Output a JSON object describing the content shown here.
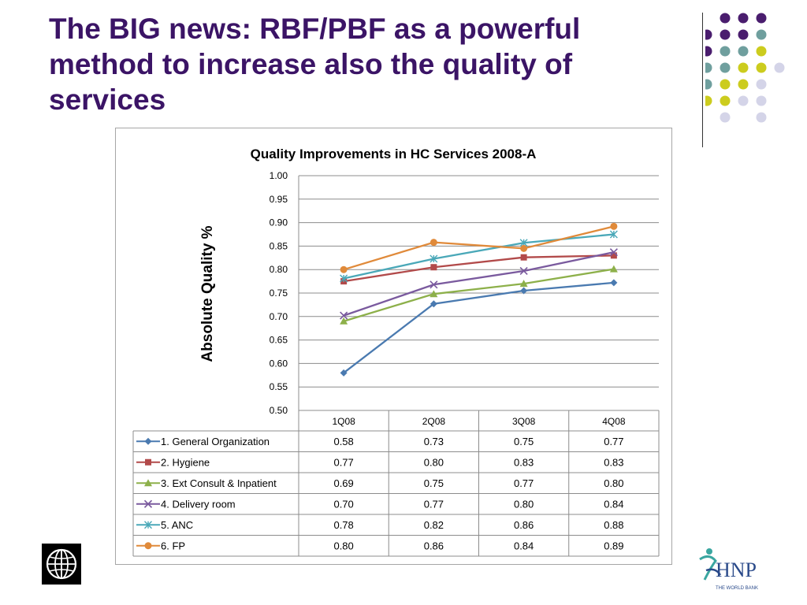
{
  "slide": {
    "title": "The BIG news: RBF/PBF as a powerful method to increase also the quality of services"
  },
  "logos": {
    "left": "world-bank-globe-logo",
    "right": "hnp-logo",
    "right_text": "HNP",
    "right_subtext": "THE WORLD BANK"
  },
  "colors": {
    "title": "#3b1466",
    "dot_purple": "#4a1d6e",
    "dot_teal": "#6f9f9e",
    "dot_yellow": "#cccc1e",
    "dot_lilac": "#d4d4e8"
  },
  "chart_data": {
    "type": "line",
    "title": "Quality Improvements in HC Services 2008-A",
    "xlabel": "",
    "ylabel": "Absolute Quality %",
    "categories": [
      "1Q08",
      "2Q08",
      "3Q08",
      "4Q08"
    ],
    "ylim": [
      0.5,
      1.0
    ],
    "yticks": [
      "0.50",
      "0.55",
      "0.60",
      "0.65",
      "0.70",
      "0.75",
      "0.80",
      "0.85",
      "0.90",
      "0.95",
      "1.00"
    ],
    "grid": true,
    "legend": "data-table-below",
    "series": [
      {
        "name": "1. General Organization",
        "values": [
          0.58,
          0.727,
          0.755,
          0.772
        ],
        "labels": [
          "0.58",
          "0.73",
          "0.75",
          "0.77"
        ],
        "color": "#4a7ab0",
        "marker": "diamond"
      },
      {
        "name": "2. Hygiene",
        "values": [
          0.775,
          0.805,
          0.826,
          0.83
        ],
        "labels": [
          "0.77",
          "0.80",
          "0.83",
          "0.83"
        ],
        "color": "#b24a4a",
        "marker": "square"
      },
      {
        "name": "3. Ext Consult & Inpatient",
        "values": [
          0.69,
          0.748,
          0.77,
          0.801
        ],
        "labels": [
          "0.69",
          "0.75",
          "0.77",
          "0.80"
        ],
        "color": "#8db04a",
        "marker": "triangle"
      },
      {
        "name": "4. Delivery room",
        "values": [
          0.702,
          0.768,
          0.797,
          0.837
        ],
        "labels": [
          "0.70",
          "0.77",
          "0.80",
          "0.84"
        ],
        "color": "#7a5a9e",
        "marker": "x"
      },
      {
        "name": "5. ANC",
        "values": [
          0.781,
          0.823,
          0.857,
          0.875
        ],
        "labels": [
          "0.78",
          "0.82",
          "0.86",
          "0.88"
        ],
        "color": "#4aa8b8",
        "marker": "star"
      },
      {
        "name": "6. FP",
        "values": [
          0.8,
          0.858,
          0.845,
          0.892
        ],
        "labels": [
          "0.80",
          "0.86",
          "0.84",
          "0.89"
        ],
        "color": "#e08a3a",
        "marker": "circle"
      }
    ]
  }
}
